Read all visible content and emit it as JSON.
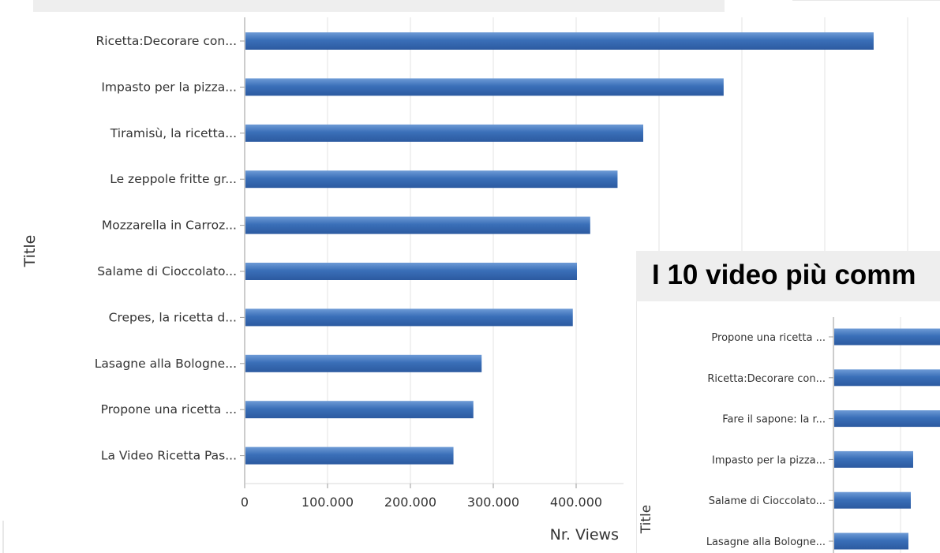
{
  "chart_data": [
    {
      "type": "bar",
      "orientation": "horizontal",
      "categories": [
        "Ricetta:Decorare con...",
        "Impasto per la pizza...",
        "Tiramisù, la ricetta...",
        "Le zeppole fritte gr...",
        "Mozzarella in Carroz...",
        "Salame di Cioccolato...",
        "Crepes, la ricetta d...",
        "Lasagne alla Bologne...",
        "Propone una ricetta ...",
        "La Video Ricetta Pas..."
      ],
      "values": [
        758000,
        577000,
        480000,
        449000,
        416000,
        400000,
        395000,
        285000,
        275000,
        251000
      ],
      "xlabel": "Nr. Views",
      "ylabel": "Title",
      "x_ticks": [
        0,
        100000,
        200000,
        300000,
        400000
      ],
      "x_tick_labels": [
        "0",
        "100.000",
        "200.000",
        "300.000",
        "400.000"
      ],
      "xlim": [
        0,
        800000
      ],
      "grid": true,
      "bar_color": "#3a6fb8"
    },
    {
      "type": "bar",
      "orientation": "horizontal",
      "title": "I 10 video più comm",
      "categories": [
        "Propone una ricetta ...",
        "Ricetta:Decorare con...",
        "Fare il sapone: la r...",
        "Impasto per la pizza...",
        "Salame di Cioccolato...",
        "Lasagne alla Bologne..."
      ],
      "ylabel": "Title",
      "grid": true,
      "bar_color": "#3a6fb8"
    }
  ]
}
